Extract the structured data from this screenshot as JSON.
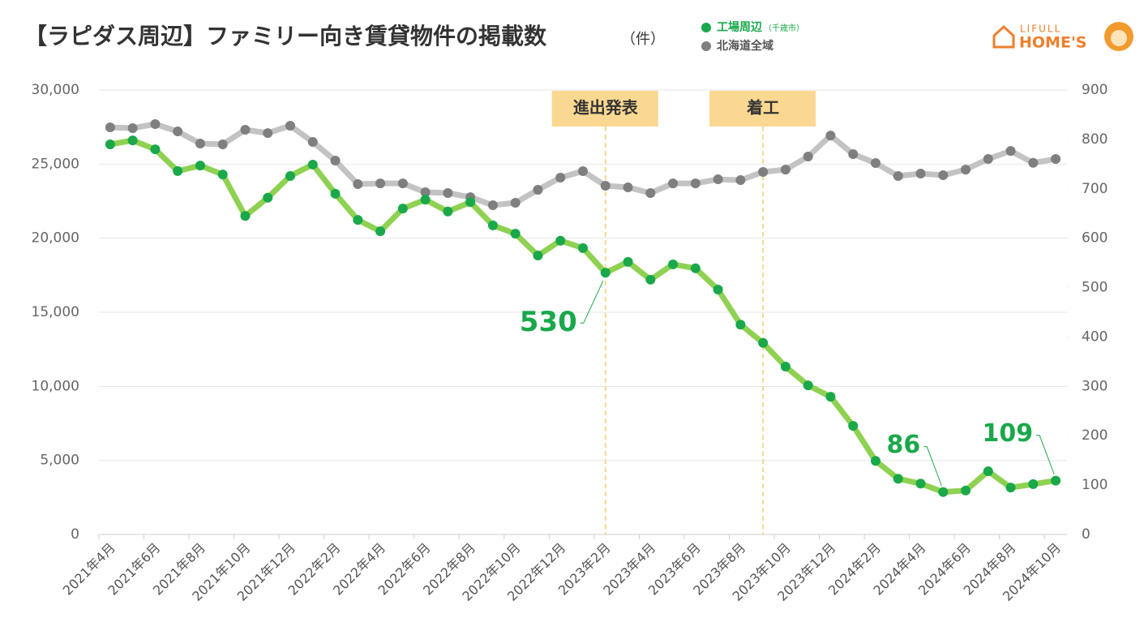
{
  "chart_data": {
    "type": "line",
    "title": "【ラピダス周辺】ファミリー向き賃貸物件の掲載数",
    "title_unit": "（件）",
    "logo": {
      "top": "LIFULL",
      "bottom": "HOME'S"
    },
    "categories": [
      "2021年4月",
      null,
      "2021年6月",
      null,
      "2021年8月",
      null,
      "2021年10月",
      null,
      "2021年12月",
      null,
      "2022年2月",
      null,
      "2022年4月",
      null,
      "2022年6月",
      null,
      "2022年8月",
      null,
      "2022年10月",
      null,
      "2022年12月",
      null,
      "2023年2月",
      null,
      "2023年4月",
      null,
      "2023年6月",
      null,
      "2023年8月",
      null,
      "2023年10月",
      null,
      "2023年12月",
      null,
      "2024年2月",
      null,
      "2024年4月",
      null,
      "2024年6月",
      null,
      "2024年8月",
      null,
      "2024年10月"
    ],
    "series": [
      {
        "name": "工場周辺",
        "name_note": "（千歳市）",
        "color": "#1aa84a",
        "line_color": "#8fd152",
        "axis": "y2",
        "labeled": [
          22,
          37,
          42
        ],
        "values": [
          790,
          798,
          780,
          736,
          747,
          729,
          645,
          682,
          726,
          749,
          690,
          637,
          614,
          660,
          678,
          654,
          673,
          626,
          609,
          565,
          595,
          580,
          530,
          552,
          516,
          547,
          539,
          496,
          425,
          388,
          340,
          302,
          279,
          220,
          149,
          113,
          103,
          86,
          89,
          128,
          95,
          102,
          109
        ]
      },
      {
        "name": "北海道全域",
        "color": "#7f7f7f",
        "line_color": "#c3c3c3",
        "values": [
          27480,
          27425,
          27700,
          27205,
          26385,
          26330,
          27315,
          27095,
          27590,
          26495,
          25235,
          23650,
          23700,
          23700,
          23100,
          23050,
          22770,
          22225,
          22390,
          23265,
          24085,
          24525,
          23540,
          23430,
          23045,
          23700,
          23700,
          23975,
          23920,
          24470,
          24630,
          25510,
          26930,
          25675,
          25070,
          24195,
          24360,
          24250,
          24630,
          25345,
          25890,
          25085,
          25345
        ]
      }
    ],
    "annotations": [
      {
        "label": "進出発表",
        "at": 22
      },
      {
        "label": "着工",
        "at": 29
      }
    ],
    "ylim": [
      0,
      30000
    ],
    "yticks": [
      0,
      {
        "value": 5000,
        "label": "5,000"
      },
      {
        "value": 10000,
        "label": "10,000"
      },
      {
        "value": 15000,
        "label": "15,000"
      },
      {
        "value": 20000,
        "label": "20,000"
      },
      {
        "value": 25000,
        "label": "25,000"
      },
      {
        "value": 30000,
        "label": "30,000"
      }
    ],
    "y2lim": [
      0,
      900
    ],
    "y2ticks": [
      0,
      100,
      200,
      300,
      400,
      500,
      600,
      700,
      800,
      900
    ],
    "grid": true
  }
}
